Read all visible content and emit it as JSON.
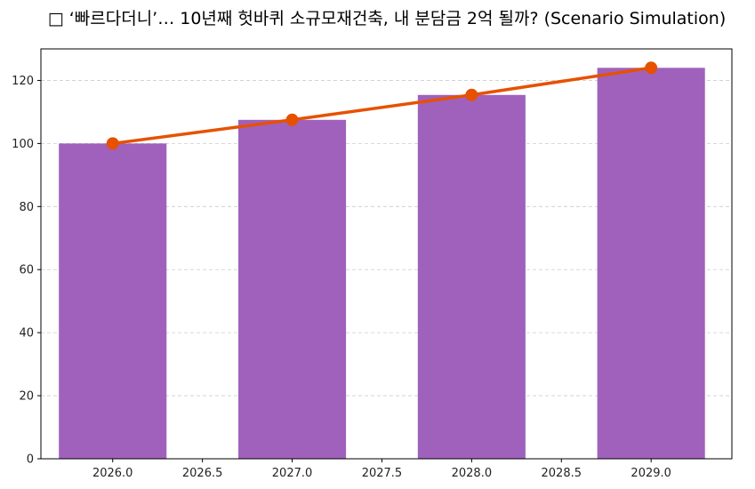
{
  "chart_data": {
    "type": "bar",
    "title": "□ ‘빠르다더니’… 10년째 헛바퀴 소규모재건축, 내 분담금 2억 될까? (Scenario Simulation)",
    "xlabel": "",
    "ylabel": "",
    "x": [
      2026.0,
      2027.0,
      2028.0,
      2029.0
    ],
    "series": [
      {
        "type": "bar",
        "values": [
          100.0,
          107.5,
          115.4,
          124.0
        ],
        "color": "#a061bd"
      },
      {
        "type": "line",
        "values": [
          100.0,
          107.5,
          115.4,
          124.0
        ],
        "color": "#e65100",
        "marker": "circle"
      }
    ],
    "xlim": [
      2025.6,
      2029.45
    ],
    "ylim": [
      0,
      130
    ],
    "xticks": [
      "2026.0",
      "2026.5",
      "2027.0",
      "2027.5",
      "2028.0",
      "2028.5",
      "2029.0"
    ],
    "yticks": [
      "0",
      "20",
      "40",
      "60",
      "80",
      "100",
      "120"
    ],
    "grid": "y-dashed",
    "legend": "none"
  }
}
